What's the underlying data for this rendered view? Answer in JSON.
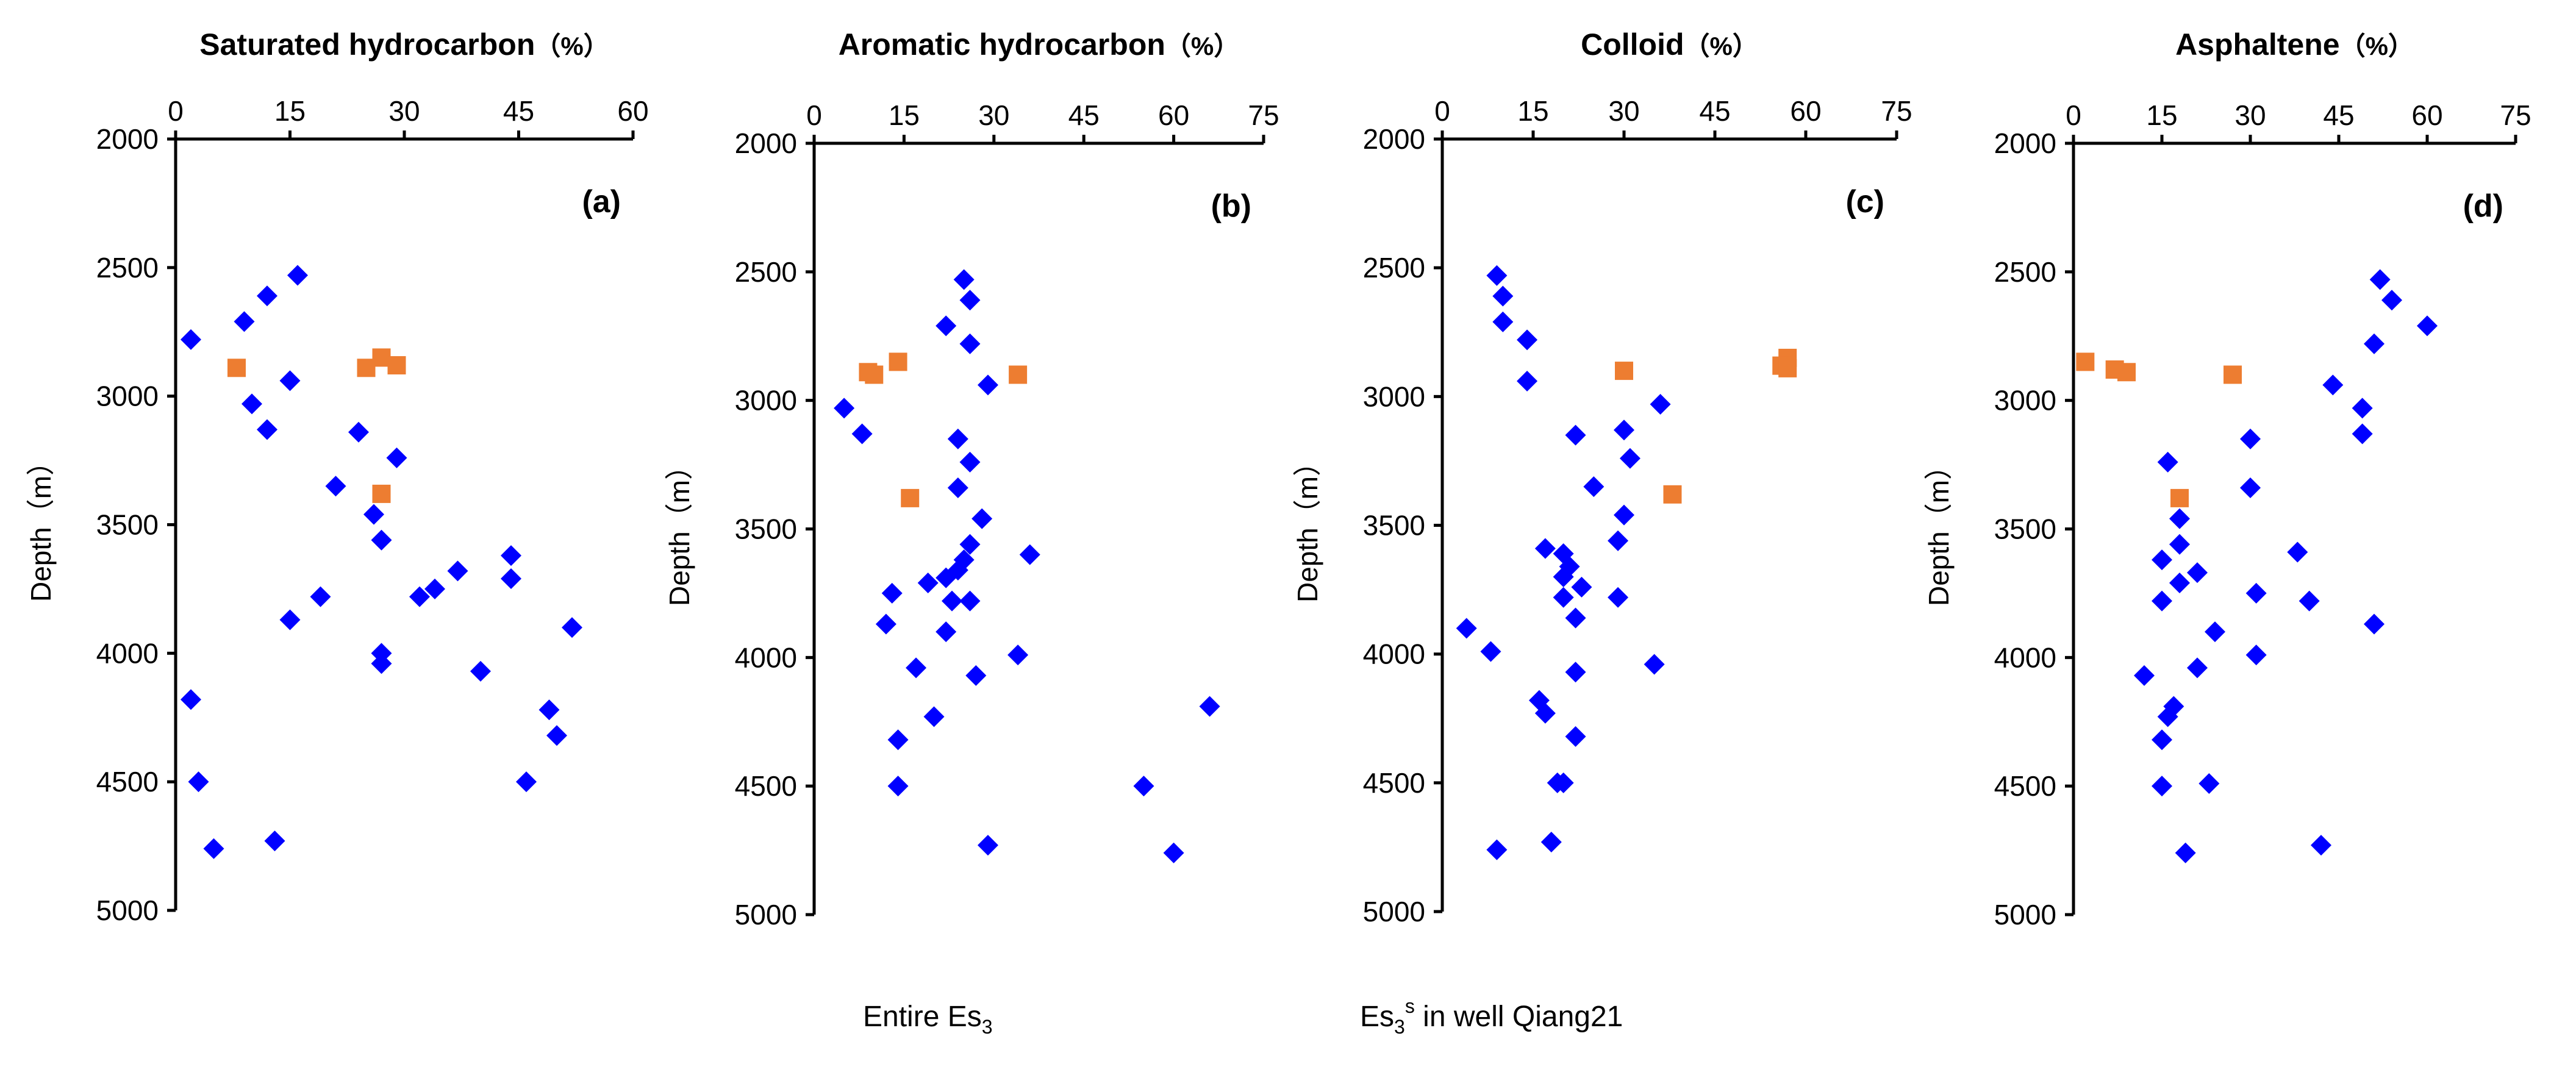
{
  "legend": [
    {
      "label": "Entire Es",
      "sub": "3",
      "sup": "",
      "tail": "",
      "color": "#0000FF",
      "marker": "diamond"
    },
    {
      "label": "Es",
      "sub": "3",
      "sup": "s",
      "tail": " in well Qiang21",
      "color": "#ED7D31",
      "marker": "square"
    }
  ],
  "chart_data": [
    {
      "type": "scatter",
      "title": "Saturated hydrocarbon",
      "unit": "（%）",
      "panel_label": "(a)",
      "xlabel": "Saturated hydrocarbon (%)",
      "ylabel": "Depth（m）",
      "xlim": [
        0,
        60
      ],
      "xticks": [
        0,
        15,
        30,
        45,
        60
      ],
      "ylim": [
        2000,
        5000
      ],
      "yticks": [
        2000,
        2500,
        3000,
        3500,
        4000,
        4500,
        5000
      ],
      "series": [
        {
          "name": "Entire Es3",
          "color": "#0000FF",
          "marker": "diamond",
          "points": [
            [
              16,
              2530
            ],
            [
              12,
              2610
            ],
            [
              9,
              2710
            ],
            [
              2,
              2780
            ],
            [
              15,
              2940
            ],
            [
              10,
              3030
            ],
            [
              12,
              3130
            ],
            [
              24,
              3140
            ],
            [
              29,
              3240
            ],
            [
              21,
              3350
            ],
            [
              26,
              3460
            ],
            [
              27,
              3560
            ],
            [
              44,
              3620
            ],
            [
              37,
              3680
            ],
            [
              44,
              3710
            ],
            [
              34,
              3750
            ],
            [
              32,
              3780
            ],
            [
              19,
              3780
            ],
            [
              15,
              3870
            ],
            [
              52,
              3900
            ],
            [
              27,
              4000
            ],
            [
              27,
              4040
            ],
            [
              40,
              4070
            ],
            [
              2,
              4180
            ],
            [
              49,
              4220
            ],
            [
              50,
              4320
            ],
            [
              3,
              4500
            ],
            [
              46,
              4500
            ],
            [
              13,
              4730
            ],
            [
              5,
              4760
            ]
          ]
        },
        {
          "name": "Es3s in well Qiang21",
          "color": "#ED7D31",
          "marker": "square",
          "points": [
            [
              27,
              2850
            ],
            [
              29,
              2880
            ],
            [
              8,
              2890
            ],
            [
              25,
              2890
            ],
            [
              27,
              3380
            ]
          ]
        }
      ]
    },
    {
      "type": "scatter",
      "title": "Aromatic hydrocarbon",
      "unit": "（%）",
      "panel_label": "(b)",
      "xlabel": "Aromatic hydrocarbon (%)",
      "ylabel": "Depth（m）",
      "xlim": [
        0,
        75
      ],
      "xticks": [
        0,
        15,
        30,
        45,
        60,
        75
      ],
      "ylim": [
        2000,
        5000
      ],
      "yticks": [
        2000,
        2500,
        3000,
        3500,
        4000,
        4500,
        5000
      ],
      "series": [
        {
          "name": "Entire Es3",
          "color": "#0000FF",
          "marker": "diamond",
          "points": [
            [
              25,
              2530
            ],
            [
              26,
              2610
            ],
            [
              22,
              2710
            ],
            [
              26,
              2780
            ],
            [
              29,
              2940
            ],
            [
              5,
              3030
            ],
            [
              8,
              3130
            ],
            [
              24,
              3150
            ],
            [
              26,
              3240
            ],
            [
              24,
              3340
            ],
            [
              28,
              3460
            ],
            [
              26,
              3560
            ],
            [
              25,
              3620
            ],
            [
              36,
              3600
            ],
            [
              24,
              3660
            ],
            [
              22,
              3690
            ],
            [
              19,
              3710
            ],
            [
              13,
              3750
            ],
            [
              23,
              3780
            ],
            [
              26,
              3780
            ],
            [
              12,
              3870
            ],
            [
              22,
              3900
            ],
            [
              34,
              3990
            ],
            [
              17,
              4040
            ],
            [
              27,
              4070
            ],
            [
              66,
              4190
            ],
            [
              20,
              4230
            ],
            [
              14,
              4320
            ],
            [
              14,
              4500
            ],
            [
              55,
              4500
            ],
            [
              29,
              4730
            ],
            [
              60,
              4760
            ]
          ]
        },
        {
          "name": "Es3s in well Qiang21",
          "color": "#ED7D31",
          "marker": "square",
          "points": [
            [
              14,
              2850
            ],
            [
              9,
              2890
            ],
            [
              10,
              2900
            ],
            [
              34,
              2900
            ],
            [
              16,
              3380
            ]
          ]
        }
      ]
    },
    {
      "type": "scatter",
      "title": "Colloid",
      "unit": "（%）",
      "panel_label": "(c)",
      "xlabel": "Colloid (%)",
      "ylabel": "Depth（m）",
      "xlim": [
        0,
        75
      ],
      "xticks": [
        0,
        15,
        30,
        45,
        60,
        75
      ],
      "ylim": [
        2000,
        5000
      ],
      "yticks": [
        2000,
        2500,
        3000,
        3500,
        4000,
        4500,
        5000
      ],
      "series": [
        {
          "name": "Entire Es3",
          "color": "#0000FF",
          "marker": "diamond",
          "points": [
            [
              9,
              2530
            ],
            [
              10,
              2610
            ],
            [
              10,
              2710
            ],
            [
              14,
              2780
            ],
            [
              14,
              2940
            ],
            [
              36,
              3030
            ],
            [
              30,
              3130
            ],
            [
              22,
              3150
            ],
            [
              31,
              3240
            ],
            [
              25,
              3350
            ],
            [
              30,
              3460
            ],
            [
              29,
              3560
            ],
            [
              17,
              3590
            ],
            [
              20,
              3610
            ],
            [
              21,
              3660
            ],
            [
              20,
              3700
            ],
            [
              23,
              3740
            ],
            [
              20,
              3780
            ],
            [
              29,
              3780
            ],
            [
              22,
              3860
            ],
            [
              4,
              3900
            ],
            [
              8,
              3990
            ],
            [
              35,
              4040
            ],
            [
              22,
              4070
            ],
            [
              16,
              4180
            ],
            [
              17,
              4230
            ],
            [
              22,
              4320
            ],
            [
              19,
              4500
            ],
            [
              20,
              4500
            ],
            [
              18,
              4730
            ],
            [
              9,
              4760
            ]
          ]
        },
        {
          "name": "Es3s in well Qiang21",
          "color": "#ED7D31",
          "marker": "square",
          "points": [
            [
              57,
              2850
            ],
            [
              56,
              2880
            ],
            [
              57,
              2890
            ],
            [
              30,
              2900
            ],
            [
              38,
              3380
            ]
          ]
        }
      ]
    },
    {
      "type": "scatter",
      "title": "Asphaltene",
      "unit": "（%）",
      "panel_label": "(d)",
      "xlabel": "Asphaltene (%)",
      "ylabel": "Depth（m）",
      "xlim": [
        0,
        75
      ],
      "xticks": [
        0,
        15,
        30,
        45,
        60,
        75
      ],
      "ylim": [
        2000,
        5000
      ],
      "yticks": [
        2000,
        2500,
        3000,
        3500,
        4000,
        4500,
        5000
      ],
      "series": [
        {
          "name": "Entire Es3",
          "color": "#0000FF",
          "marker": "diamond",
          "points": [
            [
              52,
              2530
            ],
            [
              54,
              2610
            ],
            [
              60,
              2710
            ],
            [
              51,
              2780
            ],
            [
              44,
              2940
            ],
            [
              49,
              3030
            ],
            [
              49,
              3130
            ],
            [
              30,
              3150
            ],
            [
              16,
              3240
            ],
            [
              30,
              3340
            ],
            [
              18,
              3460
            ],
            [
              18,
              3560
            ],
            [
              38,
              3590
            ],
            [
              15,
              3620
            ],
            [
              21,
              3670
            ],
            [
              18,
              3710
            ],
            [
              31,
              3750
            ],
            [
              15,
              3780
            ],
            [
              40,
              3780
            ],
            [
              51,
              3870
            ],
            [
              24,
              3900
            ],
            [
              31,
              3990
            ],
            [
              21,
              4040
            ],
            [
              12,
              4070
            ],
            [
              17,
              4190
            ],
            [
              16,
              4230
            ],
            [
              15,
              4320
            ],
            [
              15,
              4500
            ],
            [
              23,
              4490
            ],
            [
              42,
              4730
            ],
            [
              19,
              4760
            ]
          ]
        },
        {
          "name": "Es3s in well Qiang21",
          "color": "#ED7D31",
          "marker": "square",
          "points": [
            [
              2,
              2850
            ],
            [
              7,
              2880
            ],
            [
              9,
              2890
            ],
            [
              27,
              2900
            ],
            [
              18,
              3380
            ]
          ]
        }
      ]
    }
  ]
}
